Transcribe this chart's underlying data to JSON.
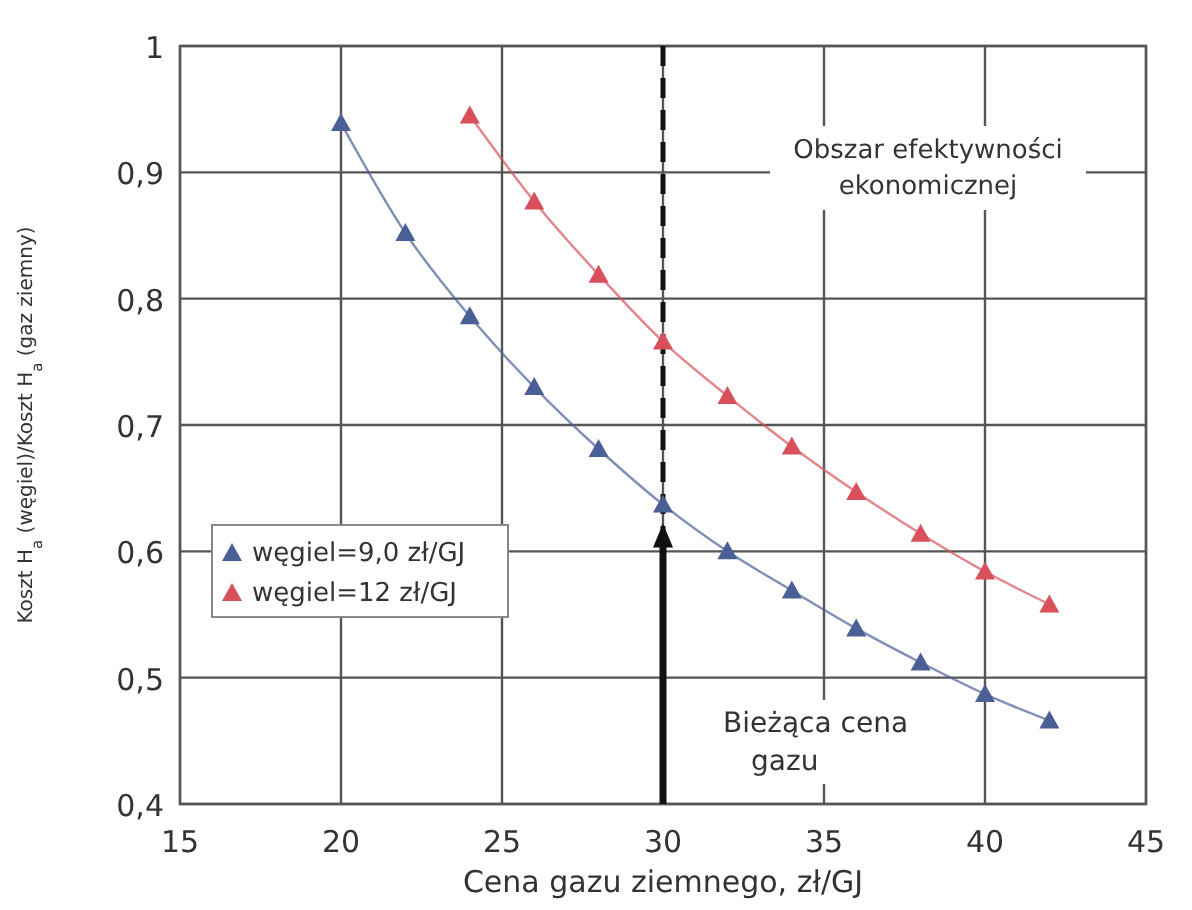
{
  "chart_data": {
    "type": "line",
    "xlabel": "Cena gazu ziemnego, zł/GJ",
    "ylabel": "Koszt H$_{a}$ (węgiel)/Koszt H$_{a}$ (gaz ziemny)",
    "xlim": [
      15,
      45
    ],
    "xticks": [
      15,
      20,
      25,
      30,
      35,
      40,
      45
    ],
    "ylim": [
      0.4,
      1
    ],
    "yticks": [
      {
        "value": 0.4,
        "label": "0,4"
      },
      {
        "value": 0.5,
        "label": "0,5"
      },
      {
        "value": 0.6,
        "label": "0,6"
      },
      {
        "value": 0.7,
        "label": "0,7"
      },
      {
        "value": 0.8,
        "label": "0,8"
      },
      {
        "value": 0.9,
        "label": "0,9"
      },
      1
    ],
    "grid": true,
    "legend": "left",
    "marker": "triangle",
    "line_style": "solid",
    "series": [
      {
        "name": "węgiel=9,0 zł/GJ",
        "color": "#4a5f95",
        "x": [
          20,
          22,
          24,
          26,
          28,
          30,
          32,
          34,
          36,
          38,
          40,
          42
        ],
        "values": [
          0.939,
          0.852,
          0.786,
          0.73,
          0.681,
          0.637,
          0.6,
          0.569,
          0.539,
          0.512,
          0.487,
          0.466
        ]
      },
      {
        "name": "węgiel=12 zł/GJ",
        "color": "#d9505a",
        "x": [
          24,
          26,
          28,
          30,
          32,
          34,
          36,
          38,
          40,
          42
        ],
        "values": [
          0.945,
          0.877,
          0.819,
          0.766,
          0.723,
          0.683,
          0.647,
          0.614,
          0.584,
          0.558
        ]
      }
    ],
    "ref_lines": [
      {
        "axis": "x",
        "value": 30,
        "line_style": "dashed",
        "color": "#111111"
      }
    ],
    "annotations": [
      "Bieżąca cena gazu",
      "Obszar efektywności ekonomicznej"
    ]
  }
}
